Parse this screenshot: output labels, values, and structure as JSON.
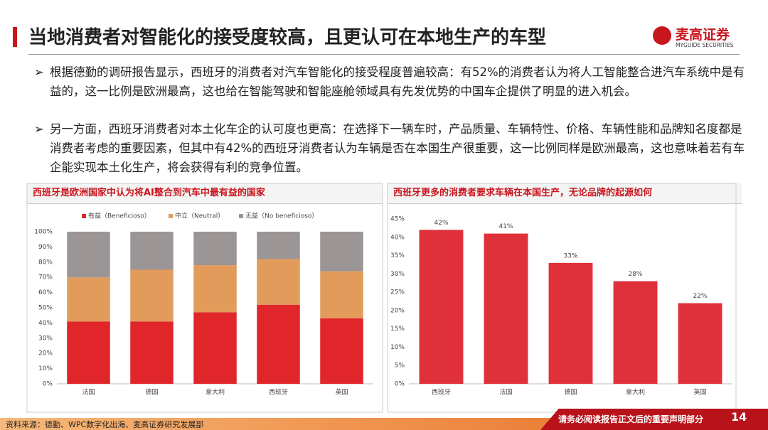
{
  "header": {
    "title": "当地消费者对智能化的接受度较高，且更认可在本地生产的车型",
    "logo": "麦高证券",
    "logo_sub": "MYGUIDE SECURITIES"
  },
  "bullets": [
    "根据德勤的调研报告显示，西班牙的消费者对汽车智能化的接受程度普遍较高：有52%的消费者认为将人工智能整合进汽车系统中是有益的，这一比例是欧洲最高，这也给在智能驾驶和智能座舱领域具有先发优势的中国车企提供了明显的进入机会。",
    "另一方面，西班牙消费者对本土化车企的认可度也更高：在选择下一辆车时，产品质量、车辆特性、价格、车辆性能和品牌知名度都是消费者考虑的重要因素，但其中有42%的西班牙消费者认为车辆是否在本国生产很重要，这一比例同样是欧洲最高，这也意味着若有车企能实现本土化生产，将会获得有利的竞争位置。"
  ],
  "chart_data": [
    {
      "type": "stacked_bar",
      "title": "西班牙是欧洲国家中认为将AI整合到汽车中最有益的国家",
      "categories": [
        "法国",
        "德国",
        "意大利",
        "西班牙",
        "英国"
      ],
      "series": [
        {
          "name": "有益（Beneficioso）",
          "color": "#e0262a",
          "values": [
            41,
            41,
            47,
            52,
            43
          ]
        },
        {
          "name": "中立（Neutral）",
          "color": "#e29b5b",
          "values": [
            29,
            34,
            31,
            30,
            31
          ]
        },
        {
          "name": "无益（No beneficioso）",
          "color": "#9c9595",
          "values": [
            30,
            25,
            22,
            18,
            26
          ]
        }
      ],
      "ylim": [
        0,
        100
      ],
      "yticks": [
        {
          "value": 0,
          "label": "0%"
        },
        {
          "value": 10,
          "label": "10%"
        },
        {
          "value": 20,
          "label": "20%"
        },
        {
          "value": 30,
          "label": "30%"
        },
        {
          "value": 40,
          "label": "40%"
        },
        {
          "value": 50,
          "label": "50%"
        },
        {
          "value": 60,
          "label": "60%"
        },
        {
          "value": 70,
          "label": "70%"
        },
        {
          "value": 80,
          "label": "80%"
        },
        {
          "value": 90,
          "label": "90%"
        },
        {
          "value": 100,
          "label": "100%"
        }
      ],
      "legend": "top"
    },
    {
      "type": "bar",
      "title": "西班牙更多的消费者要求车辆在本国生产，无论品牌的起源如何",
      "categories": [
        "西班牙",
        "法国",
        "德国",
        "意大利",
        "英国"
      ],
      "values": [
        42,
        41,
        33,
        28,
        22
      ],
      "value_labels": [
        "42%",
        "41%",
        "33%",
        "28%",
        "22%"
      ],
      "color": "#e0313a",
      "ylim": [
        0,
        45
      ],
      "yticks": [
        {
          "value": 0,
          "label": "0%"
        },
        {
          "value": 5,
          "label": "5%"
        },
        {
          "value": 10,
          "label": "10%"
        },
        {
          "value": 15,
          "label": "15%"
        },
        {
          "value": 20,
          "label": "20%"
        },
        {
          "value": 25,
          "label": "25%"
        },
        {
          "value": 30,
          "label": "30%"
        },
        {
          "value": 35,
          "label": "35%"
        },
        {
          "value": 40,
          "label": "40%"
        },
        {
          "value": 45,
          "label": "45%"
        }
      ]
    }
  ],
  "footer": {
    "source": "资料来源：德勤、WPC数字化出海、麦高证券研究发展部",
    "notice": "请务必阅读报告正文后的重要声明部分",
    "page": "14"
  }
}
